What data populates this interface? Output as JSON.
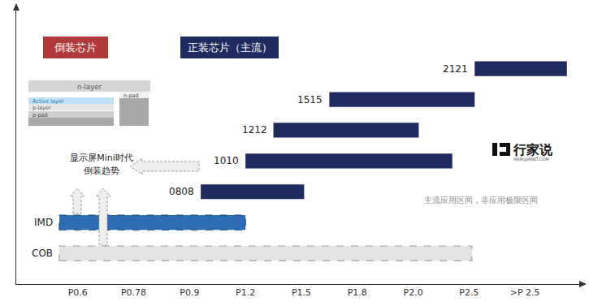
{
  "chart_data": {
    "type": "range_bar",
    "orientation": "horizontal",
    "categories": [
      "P0.6",
      "P0.78",
      "P0.9",
      "P1.2",
      "P1.5",
      "P1.8",
      "P2.0",
      "P2.5",
      ">P 2.5"
    ],
    "xlim": [
      -1.1,
      9.0
    ],
    "tick_labels": "x",
    "series": [
      {
        "name": "2121",
        "start": 7.1,
        "end": 8.75,
        "color": "#1f2b5e",
        "line_style": "solid"
      },
      {
        "name": "1515",
        "start": 4.5,
        "end": 7.1,
        "color": "#1f2b5e",
        "line_style": "solid"
      },
      {
        "name": "1212",
        "start": 3.5,
        "end": 6.1,
        "color": "#1f2b5e",
        "line_style": "solid"
      },
      {
        "name": "1010",
        "start": 3.0,
        "end": 6.7,
        "color": "#1f2b5e",
        "line_style": "solid"
      },
      {
        "name": "0808",
        "start": 2.2,
        "end": 4.05,
        "color": "#1f2b5e",
        "line_style": "solid"
      },
      {
        "name": "IMD",
        "start": -0.33,
        "end": 3.0,
        "color": "#2e6db4",
        "line_style": "dashed"
      },
      {
        "name": "COB",
        "start": -0.33,
        "end": 7.05,
        "color": "#e3e3e3",
        "line_style": "dashed"
      }
    ],
    "annotations": {
      "flip_chip": "倒装芯片",
      "face_up_chip": "正装芯片（主流）",
      "flip_trend": [
        "显示屏Mini时代",
        "倒装趋势"
      ],
      "note": "主流应用区间，非应用极限区间",
      "logo": "行家说",
      "logo_sub": "HANGJIANET.COM"
    },
    "chip_layers": {
      "n_layer": "n-layer",
      "active_layer": "Active layer",
      "p_layer": "p-layer",
      "p_pad": "p-pad",
      "n_pad": "n-pad"
    }
  }
}
